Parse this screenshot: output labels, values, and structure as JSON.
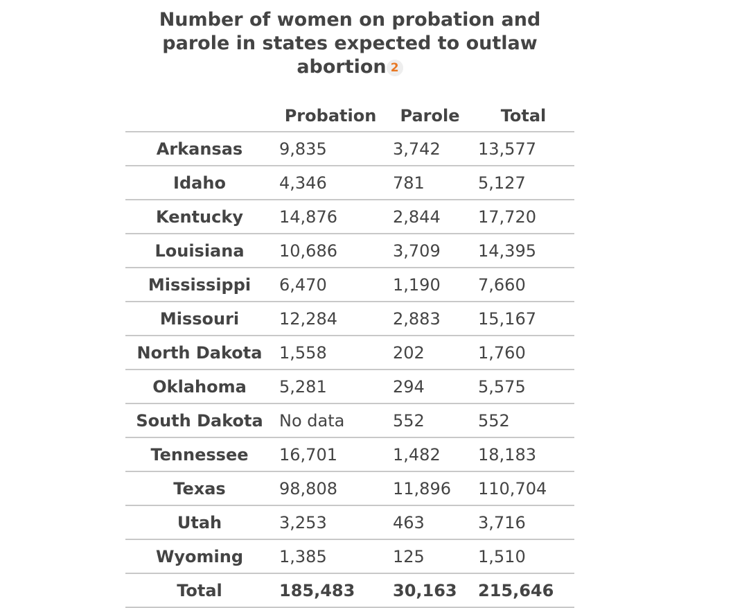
{
  "title": "Number of women on probation and parole in states expected to outlaw abortion",
  "footnote": "2",
  "table": {
    "header": [
      "",
      "Probation",
      "Parole",
      "Total"
    ],
    "rows": [
      [
        "Arkansas",
        "9,835",
        "3,742",
        "13,577"
      ],
      [
        "Idaho",
        "4,346",
        "781",
        "5,127"
      ],
      [
        "Kentucky",
        "14,876",
        "2,844",
        "17,720"
      ],
      [
        "Louisiana",
        "10,686",
        "3,709",
        "14,395"
      ],
      [
        "Mississippi",
        "6,470",
        "1,190",
        "7,660"
      ],
      [
        "Missouri",
        "12,284",
        "2,883",
        "15,167"
      ],
      [
        "North Dakota",
        "1,558",
        "202",
        "1,760"
      ],
      [
        "Oklahoma",
        "5,281",
        "294",
        "5,575"
      ],
      [
        "South Dakota",
        "No data",
        "552",
        "552"
      ],
      [
        "Tennessee",
        "16,701",
        "1,482",
        "18,183"
      ],
      [
        "Texas",
        "98,808",
        "11,896",
        "110,704"
      ],
      [
        "Utah",
        "3,253",
        "463",
        "3,716"
      ],
      [
        "Wyoming",
        "1,385",
        "125",
        "1,510"
      ]
    ],
    "total": [
      "Total",
      "185,483",
      "30,163",
      "215,646"
    ]
  }
}
